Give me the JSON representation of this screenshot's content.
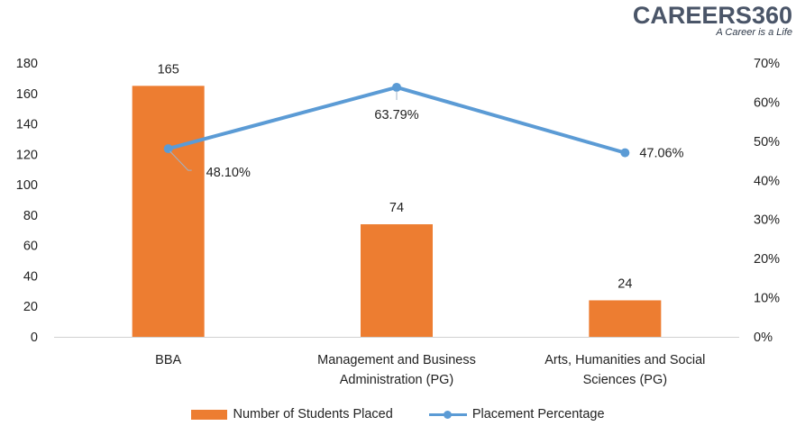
{
  "logo": {
    "brand": "CAREERS360",
    "tagline": "A Career is a Life"
  },
  "chart_data": {
    "type": "bar+line",
    "categories": [
      [
        "BBA"
      ],
      [
        "Management and Business",
        "Administration (PG)"
      ],
      [
        "Arts, Humanities and Social",
        "Sciences (PG)"
      ]
    ],
    "series": [
      {
        "name": "Number of Students Placed",
        "type": "bar",
        "axis": "left",
        "color": "#ED7D31",
        "values": [
          165,
          74,
          24
        ],
        "labels": [
          "165",
          "74",
          "24"
        ]
      },
      {
        "name": "Placement Percentage",
        "type": "line",
        "axis": "right",
        "color": "#5B9BD5",
        "values": [
          48.1,
          63.79,
          47.06
        ],
        "labels": [
          "48.10%",
          "63.79%",
          "47.06%"
        ]
      }
    ],
    "y_left": {
      "min": 0,
      "max": 180,
      "ticks": [
        "0",
        "20",
        "40",
        "60",
        "80",
        "100",
        "120",
        "140",
        "160",
        "180"
      ]
    },
    "y_right": {
      "min": 0,
      "max": 70,
      "ticks": [
        "0%",
        "10%",
        "20%",
        "30%",
        "40%",
        "50%",
        "60%",
        "70%"
      ]
    },
    "grid": false,
    "legend_position": "bottom"
  }
}
